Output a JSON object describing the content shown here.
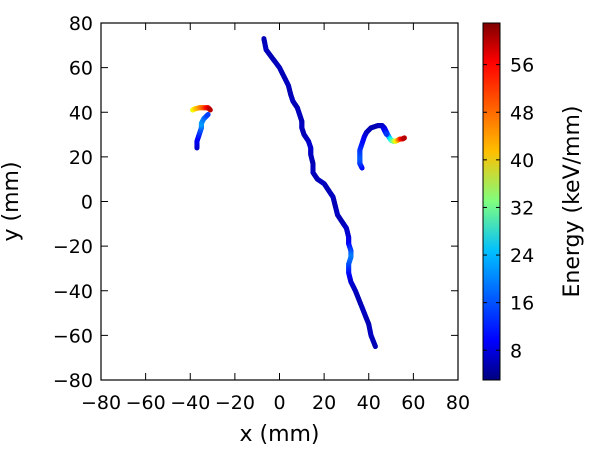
{
  "chart_data": {
    "type": "scatter",
    "xlabel": "x (mm)",
    "ylabel": "y (mm)",
    "xlim": [
      -80,
      80
    ],
    "ylim": [
      -80,
      80
    ],
    "xticks": [
      -80,
      -60,
      -40,
      -20,
      0,
      20,
      40,
      60,
      80
    ],
    "yticks": [
      -80,
      -60,
      -40,
      -20,
      0,
      20,
      40,
      60,
      80
    ],
    "grid": false,
    "colorbar": {
      "label": "Energy (keV/mm)",
      "range": [
        3,
        63
      ],
      "ticks": [
        8,
        16,
        24,
        32,
        40,
        48,
        56
      ],
      "colormap": "jet"
    },
    "series": [
      {
        "points": [
          [
            -7,
            73,
            6
          ],
          [
            -6,
            68,
            7
          ],
          [
            -3,
            64,
            6
          ],
          [
            0,
            60,
            7
          ],
          [
            2,
            56,
            6
          ],
          [
            4,
            52,
            7
          ],
          [
            5,
            48,
            6
          ],
          [
            6,
            45,
            7
          ],
          [
            8,
            42,
            6
          ],
          [
            9,
            39,
            7
          ],
          [
            10,
            36,
            6
          ],
          [
            10,
            33,
            7
          ],
          [
            11,
            30,
            6
          ],
          [
            13,
            27,
            7
          ],
          [
            14,
            24,
            8
          ],
          [
            14,
            21,
            7
          ],
          [
            15,
            17,
            6
          ],
          [
            15,
            13,
            7
          ],
          [
            17,
            10,
            6
          ],
          [
            20,
            8,
            7
          ],
          [
            22,
            5,
            6
          ],
          [
            24,
            2,
            7
          ],
          [
            25,
            -2,
            6
          ],
          [
            26,
            -6,
            7
          ],
          [
            28,
            -9,
            6
          ],
          [
            30,
            -12,
            7
          ],
          [
            31,
            -16,
            8
          ],
          [
            31,
            -19,
            10
          ],
          [
            32,
            -22,
            14
          ],
          [
            32,
            -25,
            18
          ],
          [
            31,
            -28,
            16
          ],
          [
            31,
            -32,
            12
          ],
          [
            32,
            -36,
            8
          ],
          [
            34,
            -40,
            7
          ],
          [
            36,
            -45,
            6
          ],
          [
            38,
            -50,
            7
          ],
          [
            40,
            -55,
            6
          ],
          [
            41,
            -60,
            7
          ],
          [
            43,
            -65,
            6
          ]
        ]
      },
      {
        "points": [
          [
            -37,
            24,
            7
          ],
          [
            -37,
            27,
            9
          ],
          [
            -36,
            30,
            12
          ],
          [
            -35,
            33,
            16
          ],
          [
            -35,
            35,
            20
          ],
          [
            -34,
            37,
            18
          ],
          [
            -33,
            38,
            16
          ],
          [
            -32,
            39,
            14
          ]
        ]
      },
      {
        "points": [
          [
            -39,
            41,
            38
          ],
          [
            -38,
            41.5,
            42
          ],
          [
            -36,
            42,
            46
          ],
          [
            -34,
            42,
            50
          ],
          [
            -32,
            42,
            56
          ],
          [
            -31,
            41,
            60
          ]
        ]
      },
      {
        "points": [
          [
            37,
            15,
            10
          ],
          [
            36,
            17,
            13
          ],
          [
            36,
            20,
            16
          ],
          [
            36,
            23,
            14
          ],
          [
            37,
            26,
            12
          ],
          [
            38,
            29,
            10
          ],
          [
            39,
            31,
            8
          ],
          [
            41,
            33,
            6
          ],
          [
            44,
            34,
            6
          ],
          [
            46,
            34,
            7
          ],
          [
            47,
            33,
            8
          ],
          [
            48,
            31,
            12
          ],
          [
            49,
            29,
            18
          ],
          [
            50,
            27.5,
            26
          ],
          [
            51,
            27,
            32
          ],
          [
            52,
            27,
            38
          ],
          [
            53,
            27.5,
            44
          ],
          [
            54,
            28,
            50
          ],
          [
            55,
            28,
            56
          ],
          [
            56,
            28.5,
            60
          ]
        ]
      },
      {
        "points": [
          [
            46,
            34,
            7
          ],
          [
            47,
            32,
            9
          ],
          [
            48,
            30,
            14
          ]
        ]
      }
    ]
  },
  "colors": {
    "axis": "#000000",
    "background": "#ffffff"
  }
}
